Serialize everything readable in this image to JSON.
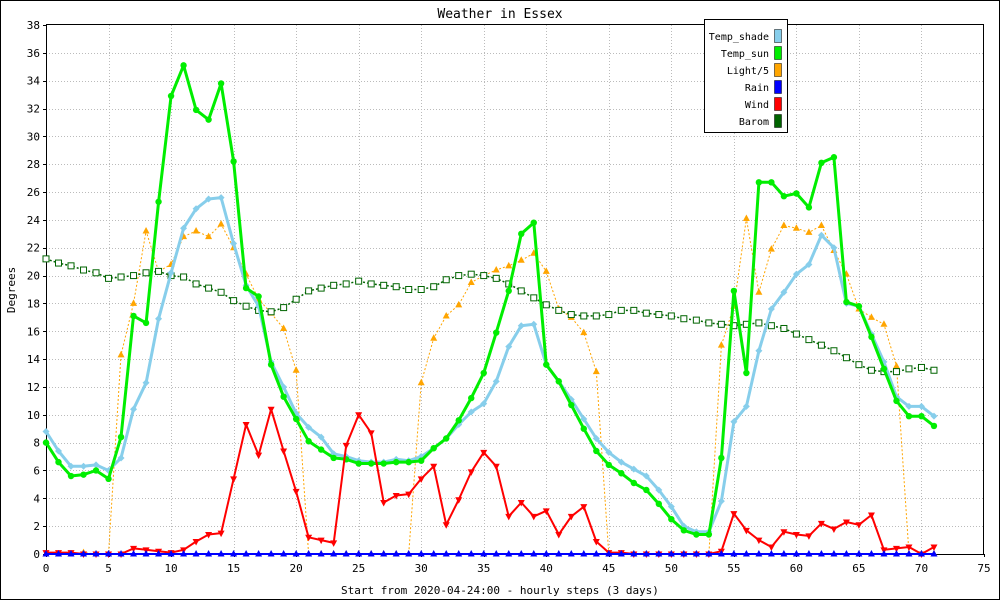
{
  "chart_data": {
    "type": "line",
    "title": "Weather in Essex",
    "xlabel": "Start from 2020-04-24:00 - hourly steps (3 days)",
    "ylabel": "Degrees",
    "xlim": [
      0,
      75
    ],
    "ylim": [
      0,
      38
    ],
    "x_ticks": [
      0,
      5,
      10,
      15,
      20,
      25,
      30,
      35,
      40,
      45,
      50,
      55,
      60,
      65,
      70,
      75
    ],
    "y_ticks": [
      0,
      2,
      4,
      6,
      8,
      10,
      12,
      14,
      16,
      18,
      20,
      22,
      24,
      26,
      28,
      30,
      32,
      34,
      36,
      38
    ],
    "grid": true,
    "legend_position": "top-right",
    "series": [
      {
        "name": "Temp_shade",
        "color": "#87ceeb",
        "marker": "diamond",
        "values": [
          8.8,
          7.4,
          6.3,
          6.3,
          6.4,
          6.0,
          6.9,
          10.4,
          12.3,
          16.9,
          20.2,
          23.4,
          24.8,
          25.5,
          25.6,
          22.3,
          19.3,
          17.8,
          13.8,
          12.0,
          10.1,
          9.1,
          8.4,
          7.2,
          7.0,
          6.7,
          6.6,
          6.6,
          6.8,
          6.7,
          7.0,
          7.6,
          8.3,
          9.3,
          10.2,
          10.8,
          12.4,
          14.9,
          16.4,
          16.5,
          13.6,
          12.4,
          11.1,
          9.7,
          8.3,
          7.3,
          6.6,
          6.1,
          5.6,
          4.6,
          3.4,
          2.0,
          1.6,
          1.6,
          3.8,
          9.5,
          10.6,
          14.6,
          17.6,
          18.8,
          20.1,
          20.8,
          22.9,
          22.0,
          18.0,
          17.8,
          15.8,
          13.8,
          11.3,
          10.6,
          10.6,
          9.9
        ]
      },
      {
        "name": "Temp_sun",
        "color": "#00ee00",
        "marker": "circle",
        "values": [
          8.0,
          6.6,
          5.6,
          5.7,
          6.0,
          5.4,
          8.4,
          17.1,
          16.6,
          25.3,
          32.9,
          35.1,
          31.9,
          31.2,
          33.8,
          28.2,
          19.1,
          18.5,
          13.6,
          11.3,
          9.7,
          8.1,
          7.5,
          6.9,
          6.8,
          6.5,
          6.5,
          6.5,
          6.6,
          6.6,
          6.7,
          7.6,
          8.3,
          9.6,
          11.2,
          13.0,
          15.9,
          18.9,
          23.0,
          23.8,
          13.6,
          12.4,
          10.7,
          9.0,
          7.4,
          6.4,
          5.8,
          5.1,
          4.6,
          3.6,
          2.5,
          1.7,
          1.4,
          1.4,
          6.9,
          18.9,
          13.0,
          26.7,
          26.7,
          25.7,
          25.9,
          24.9,
          28.1,
          28.5,
          18.1,
          17.8,
          15.6,
          13.3,
          11.0,
          9.9,
          9.9,
          9.2
        ]
      },
      {
        "name": "Light/5",
        "color": "#ffa500",
        "marker": "triangle",
        "values": [
          0,
          0,
          0,
          0.1,
          0,
          0,
          14.3,
          18.0,
          23.2,
          20.3,
          20.8,
          22.8,
          23.2,
          22.8,
          23.7,
          22.0,
          20.1,
          18.3,
          17.3,
          16.2,
          13.2,
          0,
          0,
          0,
          0,
          0,
          0,
          0,
          0,
          0,
          12.3,
          15.5,
          17.1,
          17.9,
          19.5,
          20.0,
          20.4,
          20.7,
          21.1,
          21.6,
          20.3,
          17.6,
          17.0,
          15.9,
          13.1,
          0,
          0,
          0,
          0,
          0,
          0,
          0,
          0,
          0,
          15.0,
          17.8,
          24.1,
          18.8,
          21.9,
          23.6,
          23.4,
          23.1,
          23.6,
          21.8,
          20.1,
          17.6,
          17.0,
          16.5,
          13.5,
          0,
          0,
          0
        ]
      },
      {
        "name": "Rain",
        "color": "#0000ff",
        "marker": "triangle",
        "values": [
          0,
          0,
          0,
          0,
          0,
          0,
          0,
          0,
          0,
          0,
          0,
          0,
          0,
          0,
          0,
          0,
          0,
          0,
          0,
          0,
          0,
          0,
          0,
          0,
          0,
          0,
          0,
          0,
          0,
          0,
          0,
          0,
          0,
          0,
          0,
          0,
          0,
          0,
          0,
          0,
          0,
          0,
          0,
          0,
          0,
          0,
          0,
          0,
          0,
          0,
          0,
          0,
          0,
          0,
          0,
          0,
          0,
          0,
          0,
          0,
          0,
          0,
          0,
          0,
          0,
          0,
          0,
          0,
          0,
          0,
          0,
          0
        ]
      },
      {
        "name": "Wind",
        "color": "#ff0000",
        "marker": "triangle-down",
        "values": [
          0.1,
          0.1,
          0.1,
          0,
          0,
          0,
          0,
          0.4,
          0.3,
          0.2,
          0.1,
          0.3,
          0.9,
          1.4,
          1.5,
          5.4,
          9.3,
          7.1,
          10.4,
          7.4,
          4.5,
          1.2,
          1.0,
          0.8,
          7.8,
          10.0,
          8.7,
          3.7,
          4.2,
          4.3,
          5.4,
          6.3,
          2.1,
          3.9,
          5.9,
          7.3,
          6.3,
          2.7,
          3.7,
          2.7,
          3.1,
          1.4,
          2.7,
          3.4,
          0.9,
          0.1,
          0.1,
          0,
          0,
          0,
          0,
          0,
          0,
          0,
          0.2,
          2.9,
          1.7,
          1.0,
          0.5,
          1.6,
          1.4,
          1.3,
          2.2,
          1.8,
          2.3,
          2.1,
          2.8,
          0.3,
          0.4,
          0.5,
          0,
          0.5
        ]
      },
      {
        "name": "Barom",
        "color": "#006400",
        "marker": "square",
        "values": [
          21.2,
          20.9,
          20.7,
          20.4,
          20.2,
          19.8,
          19.9,
          20.0,
          20.2,
          20.3,
          20.0,
          19.9,
          19.4,
          19.1,
          18.8,
          18.2,
          17.8,
          17.5,
          17.4,
          17.7,
          18.3,
          18.9,
          19.1,
          19.3,
          19.4,
          19.6,
          19.4,
          19.3,
          19.2,
          19.0,
          19.0,
          19.2,
          19.7,
          20.0,
          20.1,
          20.0,
          19.8,
          19.4,
          18.9,
          18.4,
          17.9,
          17.5,
          17.2,
          17.1,
          17.1,
          17.2,
          17.5,
          17.5,
          17.3,
          17.2,
          17.1,
          16.9,
          16.8,
          16.6,
          16.5,
          16.4,
          16.5,
          16.6,
          16.4,
          16.2,
          15.8,
          15.4,
          15.0,
          14.6,
          14.1,
          13.6,
          13.2,
          13.1,
          13.1,
          13.3,
          13.4,
          13.2
        ]
      }
    ]
  }
}
